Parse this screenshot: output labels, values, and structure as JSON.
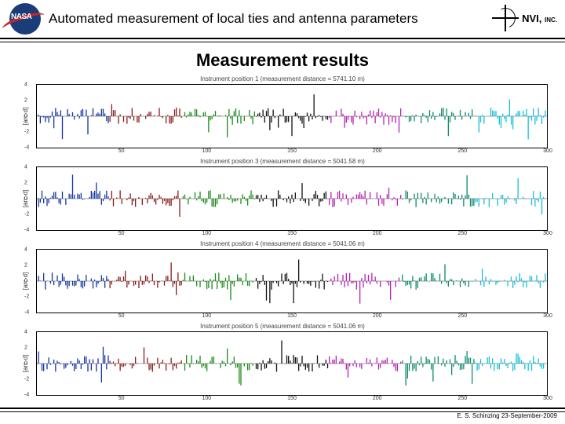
{
  "header": {
    "title": "Automated measurement of local ties and antenna parameters",
    "nasa_label": "NASA",
    "right_logo": "NVI,",
    "right_logo_sub": "INC."
  },
  "section_title": "Measurement results",
  "ylabel": "[arc·d]",
  "axis": {
    "yticks": [
      -4,
      -2,
      0,
      2,
      4
    ],
    "ymin": -4,
    "ymax": 4,
    "xticks": [
      50,
      100,
      150,
      200,
      250,
      300
    ],
    "xmin": 0,
    "xmax": 300
  },
  "axis3": {
    "yticks": [
      -4,
      -2,
      0,
      2,
      4
    ],
    "xticks": [
      50,
      100,
      150,
      200,
      250,
      300
    ]
  },
  "plot_color": "#000",
  "grid_color": "#000",
  "series_colors": [
    "#1434a4",
    "#8b1a1a",
    "#1a8b1a",
    "#111",
    "#b81fb8",
    "#0b8b6b",
    "#16c0d8"
  ],
  "plots": [
    {
      "title": "Instrument position 1 (measurement distance = 5741.10 m)",
      "seed": 11
    },
    {
      "title": "Instrument position 3 (measurement distance = 5041.58 m)",
      "seed": 33
    },
    {
      "title": "Instrument position 4 (measurement distance = 5041.06 m)",
      "seed": 44
    },
    {
      "title": "Instrument position 5 (measurement distance = 5041.06 m)",
      "seed": 55
    }
  ],
  "footer": "E. S. Schinzing 23-September-2009"
}
